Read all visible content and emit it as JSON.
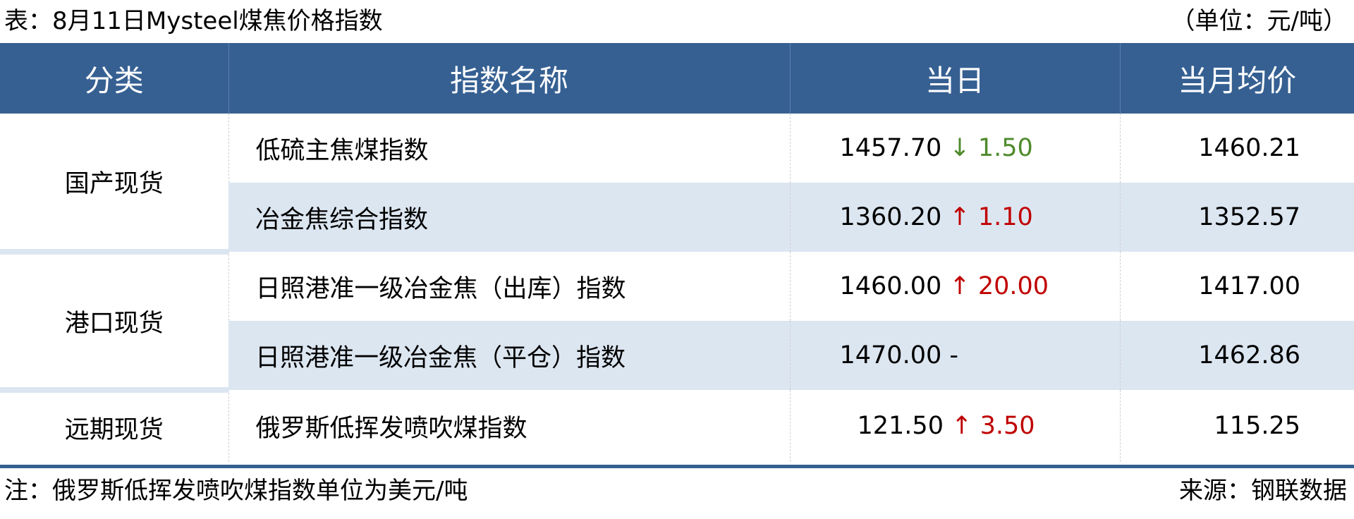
{
  "title": "表：8月11日Mysteel煤焦价格指数",
  "unit": "（单位：元/吨）",
  "headers": [
    "分类",
    "指数名称",
    "当日",
    "当月均价"
  ],
  "groups": [
    {
      "category": "国产现货",
      "rows": [
        {
          "name": "低硫主焦煤指数",
          "today": "1457.70",
          "arrow": "↓",
          "change": "1.50",
          "direction": "down",
          "monthly_avg": "1460.21"
        },
        {
          "name": "冶金焦综合指数",
          "today": "1360.20",
          "arrow": "↑",
          "change": "1.10",
          "direction": "up",
          "monthly_avg": "1352.57"
        }
      ]
    },
    {
      "category": "港口现货",
      "rows": [
        {
          "name": "日照港准一级冶金焦（出库）指数",
          "today": "1460.00",
          "arrow": "↑",
          "change": "20.00",
          "direction": "up",
          "monthly_avg": "1417.00"
        },
        {
          "name": "日照港准一级冶金焦（平仓）指数",
          "today": "1470.00",
          "arrow": "-",
          "change": "",
          "direction": "flat",
          "monthly_avg": "1462.86"
        }
      ]
    },
    {
      "category": "远期现货",
      "rows": [
        {
          "name": "俄罗斯低挥发喷吹煤指数",
          "today": "121.50",
          "arrow": "↑",
          "change": "3.50",
          "direction": "up",
          "monthly_avg": "115.25"
        }
      ]
    }
  ],
  "note": "注：俄罗斯低挥发喷吹煤指数单位为美元/吨",
  "source": "来源：钢联数据",
  "colors": {
    "header_bg": "#366092",
    "alt_row": "#dce6f1",
    "up": "#c00000",
    "down": "#4f8a2b"
  }
}
